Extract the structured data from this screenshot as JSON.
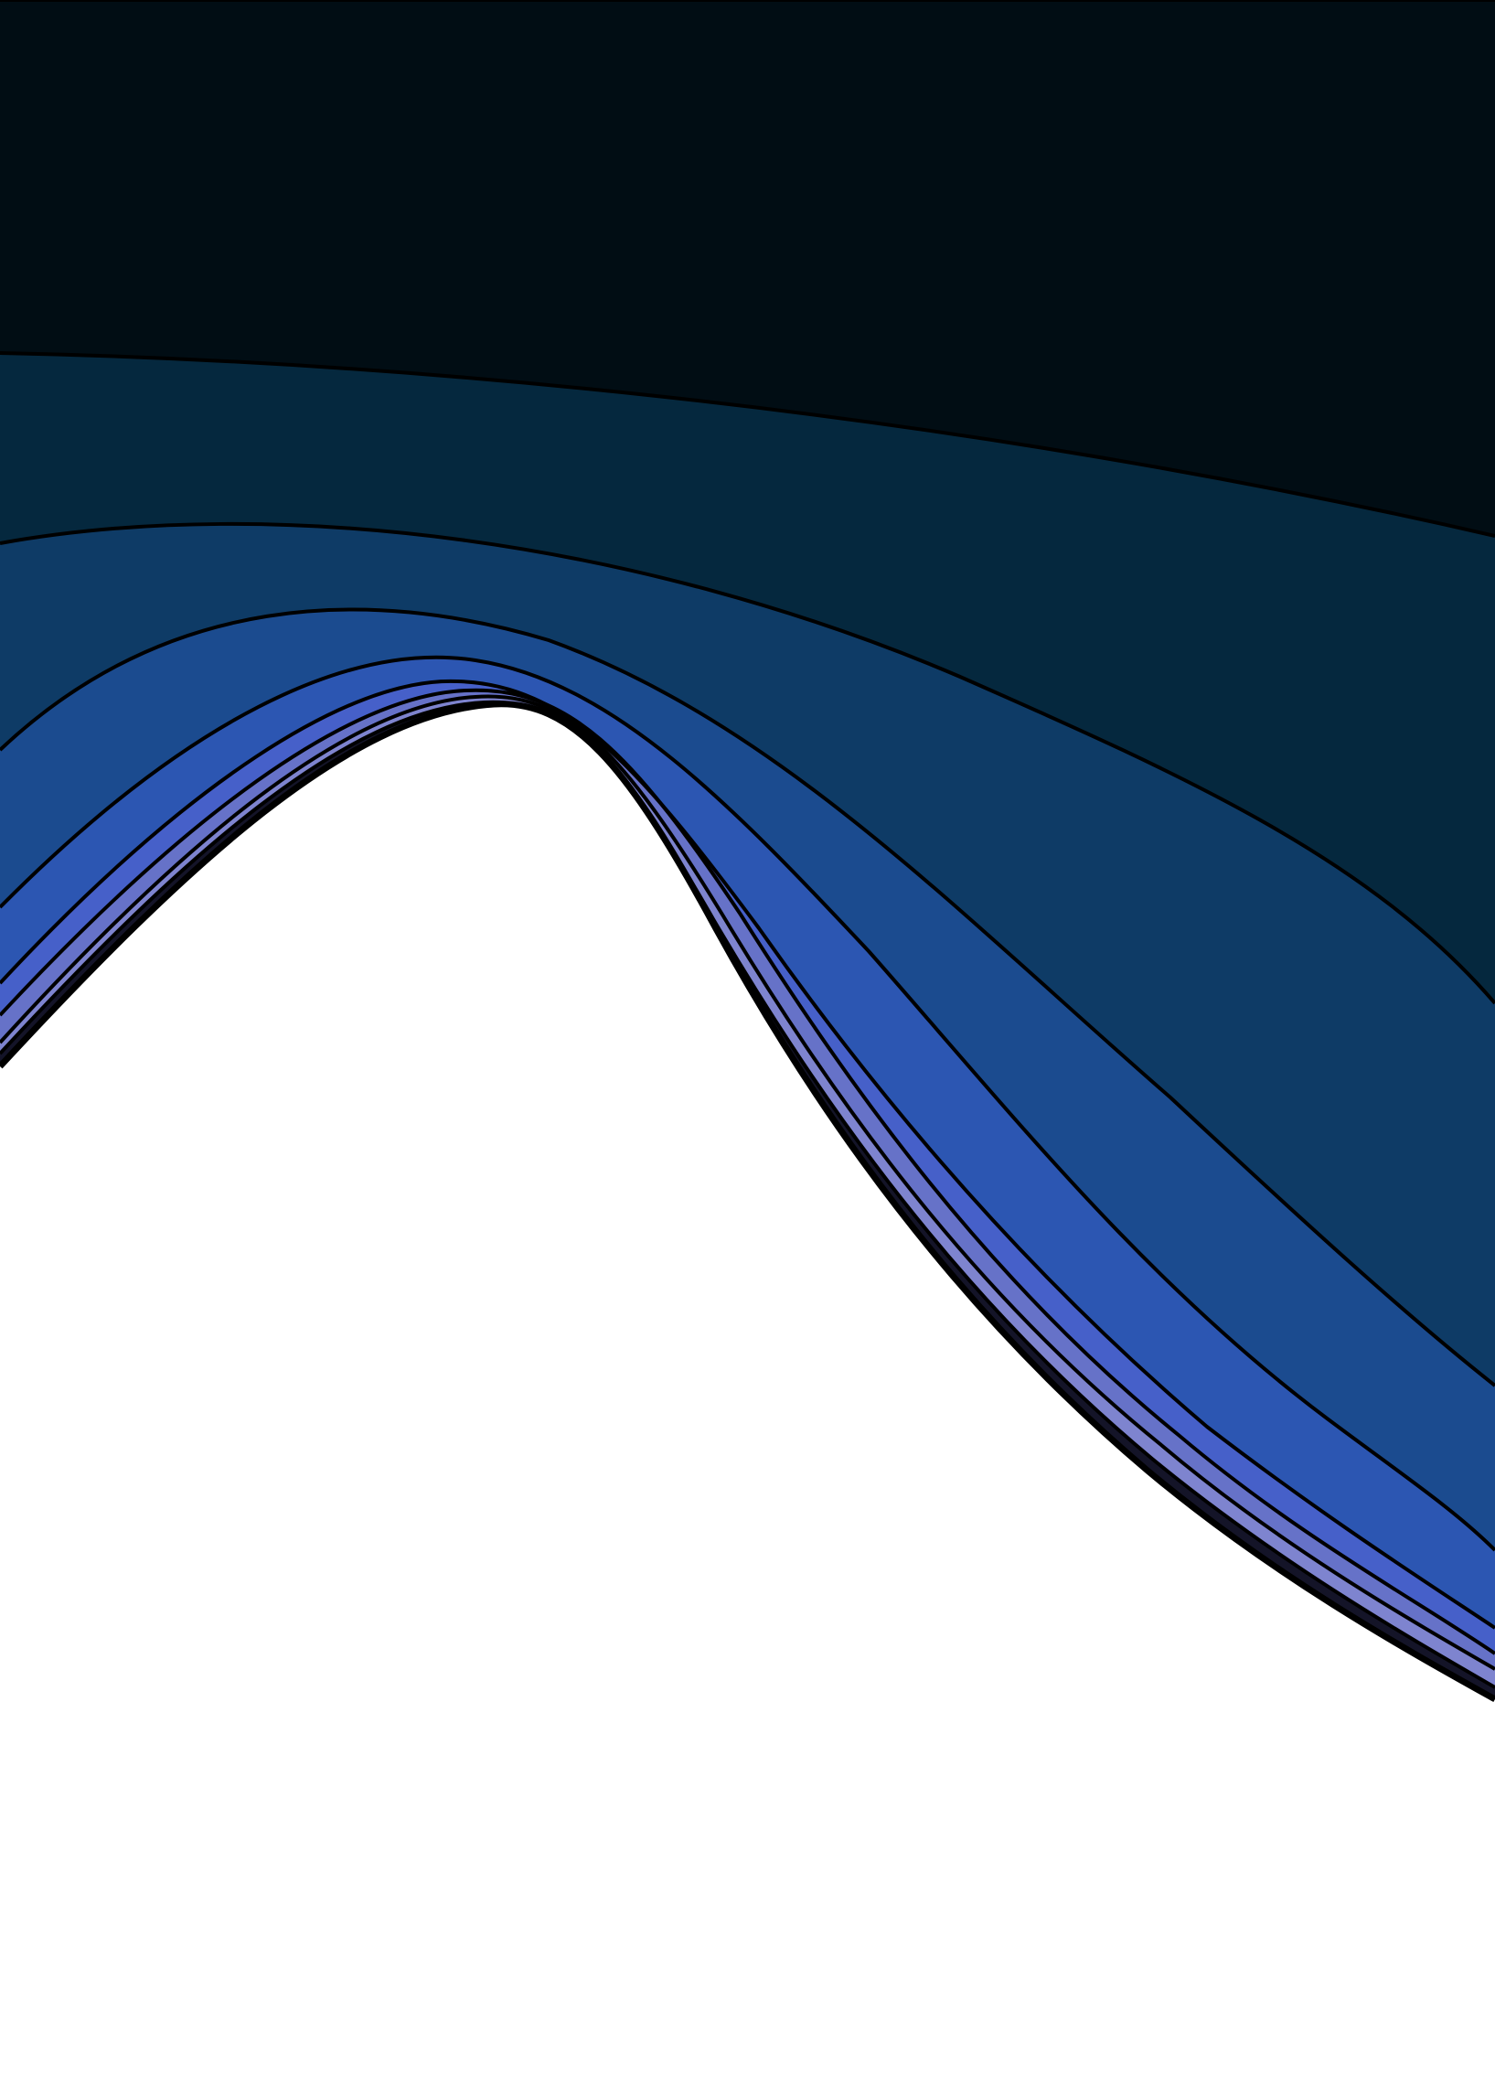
{
  "artwork": {
    "background_color": "#ffffff",
    "outline_color": "#000000",
    "bands": [
      {
        "name": "band-1-night",
        "color": "#010d14"
      },
      {
        "name": "band-2-deep-teal",
        "color": "#05283e"
      },
      {
        "name": "band-3-navy",
        "color": "#0e3b66"
      },
      {
        "name": "band-4-dark-blue",
        "color": "#1b4b8f"
      },
      {
        "name": "band-5-royal-blue",
        "color": "#2c56b2"
      },
      {
        "name": "band-6-blue",
        "color": "#4660c9"
      },
      {
        "name": "band-7-periwinkle",
        "color": "#6672c8"
      },
      {
        "name": "band-8-lavender",
        "color": "#7e84cf"
      },
      {
        "name": "band-9-dark-edge",
        "color": "#141428"
      }
    ]
  }
}
